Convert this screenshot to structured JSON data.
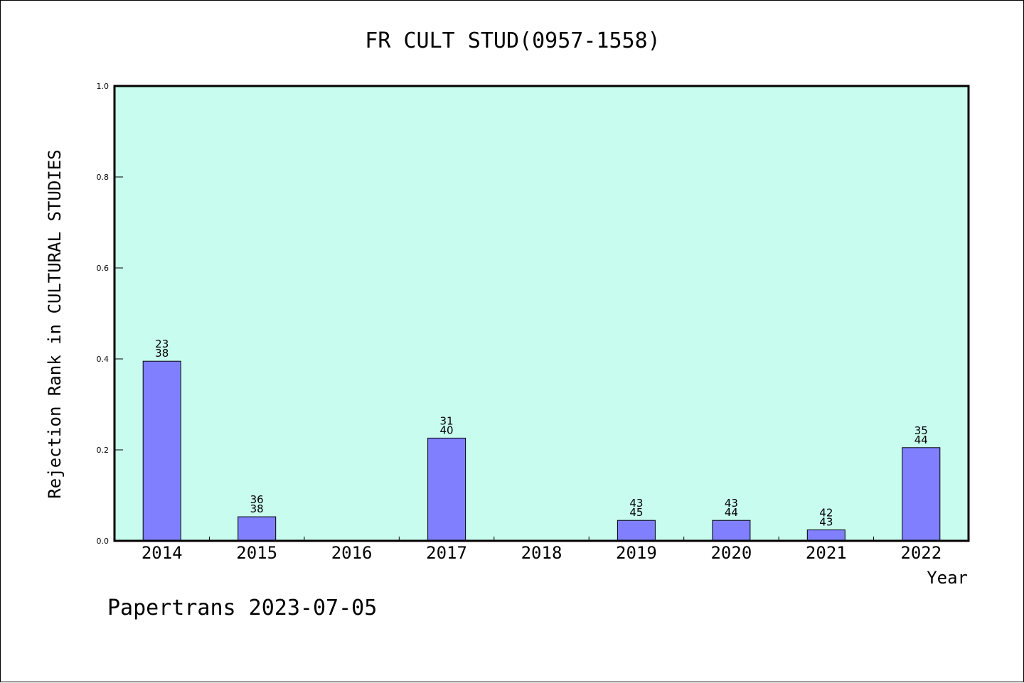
{
  "chart_data": {
    "type": "bar",
    "title": "FR CULT STUD(0957-1558)",
    "xlabel": "Year",
    "ylabel": "Rejection Rank in CULTURAL STUDIES",
    "categories": [
      "2014",
      "2015",
      "2016",
      "2017",
      "2018",
      "2019",
      "2020",
      "2021",
      "2022"
    ],
    "values": [
      0.395,
      0.053,
      0,
      0.226,
      0,
      0.045,
      0.045,
      0.024,
      0.205
    ],
    "bar_labels": [
      [
        "23",
        "38"
      ],
      [
        "36",
        "38"
      ],
      null,
      [
        "31",
        "40"
      ],
      null,
      [
        "43",
        "45"
      ],
      [
        "43",
        "44"
      ],
      [
        "42",
        "43"
      ],
      [
        "35",
        "44"
      ]
    ],
    "ylim": [
      0,
      1.0
    ],
    "yticks": [
      "0.0",
      "0.2",
      "0.4",
      "0.6",
      "0.8",
      "1.0"
    ],
    "grid": false,
    "colors": {
      "plot_background": "#c8fcee",
      "bar_fill": "#8080ff",
      "bar_stroke": "#000000",
      "axis": "#000000"
    }
  },
  "footer": "Papertrans 2023-07-05"
}
